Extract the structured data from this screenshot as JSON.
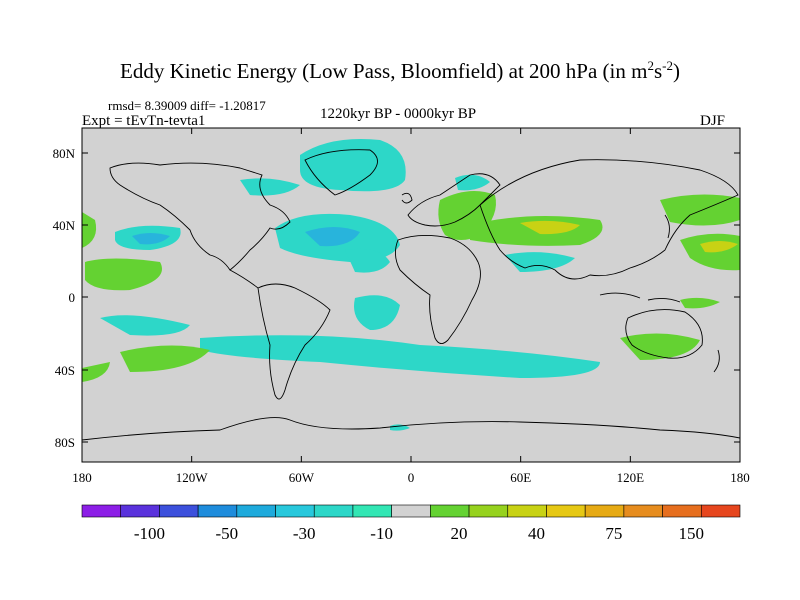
{
  "title": {
    "main": "Eddy Kinetic Energy (Low Pass, Bloomfield) at 200 hPa (in m",
    "sup1": "2",
    "mid": "s",
    "sup2": "-2",
    "end": ")"
  },
  "stats": "rmsd= 8.39009 diff= -1.20817",
  "expt": "Expt = tEvTn-tevta1",
  "period": "1220kyr BP - 0000kyr BP",
  "season": "DJF",
  "axes": {
    "lat_ticks": [
      "80N",
      "40N",
      "0",
      "40S",
      "80S"
    ],
    "lon_ticks": [
      "180",
      "120W",
      "60W",
      "0",
      "60E",
      "120E",
      "180"
    ]
  },
  "colorbar": {
    "labels": [
      "-100",
      "-50",
      "-30",
      "-10",
      "20",
      "40",
      "75",
      "150"
    ],
    "colors": [
      "#8c1ee6",
      "#5a32dc",
      "#3c50dc",
      "#1e8cdc",
      "#1eaadc",
      "#28c8dc",
      "#2dd7c8",
      "#32e6b4",
      "#d2d2d2",
      "#64d232",
      "#96d21e",
      "#c8d214",
      "#e6c814",
      "#e6aa14",
      "#e68c1e",
      "#e66e1e",
      "#e6461e"
    ]
  },
  "colors": {
    "background_field": "#d2d2d2",
    "cyan": "#2dd7c8",
    "blue": "#28b4dc",
    "green": "#64d232",
    "yellow": "#c8d214"
  }
}
